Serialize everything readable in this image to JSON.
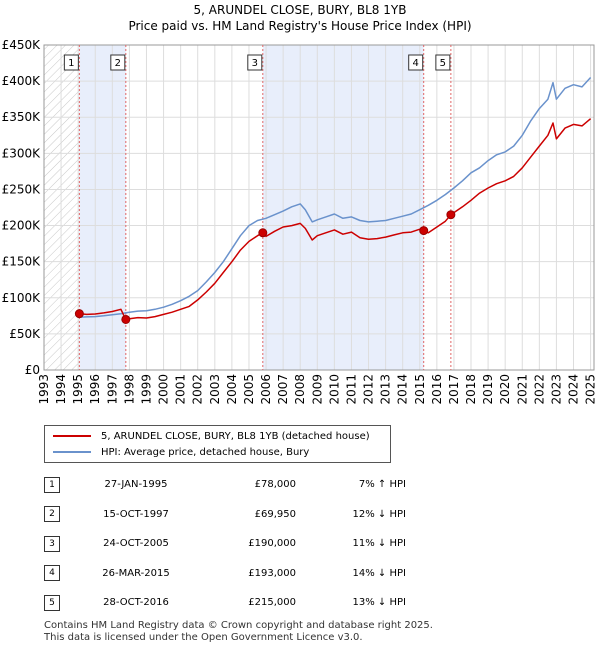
{
  "title_line1": "5, ARUNDEL CLOSE, BURY, BL8 1YB",
  "title_line2": "Price paid vs. HM Land Registry's House Price Index (HPI)",
  "chart_data": {
    "type": "line",
    "x_range": [
      1993,
      2025.2
    ],
    "ylim": [
      0,
      450000
    ],
    "y_ticks": [
      0,
      50000,
      100000,
      150000,
      200000,
      250000,
      300000,
      350000,
      400000,
      450000
    ],
    "y_tick_labels": [
      "£0",
      "£50K",
      "£100K",
      "£150K",
      "£200K",
      "£250K",
      "£300K",
      "£350K",
      "£400K",
      "£450K"
    ],
    "x_ticks": [
      1993,
      1994,
      1995,
      1996,
      1997,
      1998,
      1999,
      2000,
      2001,
      2002,
      2003,
      2004,
      2005,
      2006,
      2007,
      2008,
      2009,
      2010,
      2011,
      2012,
      2013,
      2014,
      2015,
      2016,
      2017,
      2018,
      2019,
      2020,
      2021,
      2022,
      2023,
      2024,
      2025
    ],
    "hatched_until": 1995.07,
    "series": [
      {
        "name": "5, ARUNDEL CLOSE, BURY, BL8 1YB (detached house)",
        "color": "#cc0000",
        "x": [
          1995.07,
          1995.5,
          1996.0,
          1996.5,
          1997.0,
          1997.5,
          1997.79,
          1998.0,
          1998.5,
          1999.0,
          1999.5,
          2000.0,
          2000.5,
          2001.0,
          2001.5,
          2002.0,
          2002.5,
          2003.0,
          2003.5,
          2004.0,
          2004.5,
          2005.0,
          2005.5,
          2005.81,
          2006.0,
          2006.5,
          2007.0,
          2007.5,
          2008.0,
          2008.3,
          2008.7,
          2009.0,
          2009.5,
          2010.0,
          2010.5,
          2011.0,
          2011.5,
          2012.0,
          2012.5,
          2013.0,
          2013.5,
          2014.0,
          2014.5,
          2015.0,
          2015.23,
          2015.5,
          2016.0,
          2016.5,
          2016.82,
          2017.0,
          2017.5,
          2018.0,
          2018.5,
          2019.0,
          2019.5,
          2020.0,
          2020.5,
          2021.0,
          2021.5,
          2022.0,
          2022.5,
          2022.8,
          2023.0,
          2023.5,
          2024.0,
          2024.5,
          2025.0
        ],
        "y": [
          78000,
          77000,
          77500,
          79000,
          81000,
          84000,
          69950,
          71000,
          72500,
          72000,
          74000,
          77000,
          80000,
          84000,
          88000,
          97000,
          108000,
          120000,
          135000,
          150000,
          166000,
          178000,
          186000,
          190000,
          185000,
          192000,
          198000,
          200000,
          203000,
          196000,
          180000,
          186000,
          190000,
          194000,
          188000,
          191000,
          183000,
          181000,
          182000,
          184000,
          187000,
          190000,
          191000,
          195000,
          193000,
          190000,
          198000,
          206000,
          215000,
          218000,
          226000,
          235000,
          245000,
          252000,
          258000,
          262000,
          268000,
          280000,
          295000,
          310000,
          325000,
          342000,
          320000,
          335000,
          340000,
          338000,
          348000
        ]
      },
      {
        "name": "HPI: Average price, detached house, Bury",
        "color": "#6a92cc",
        "x": [
          1995.0,
          1995.5,
          1996.0,
          1996.5,
          1997.0,
          1997.5,
          1998.0,
          1998.5,
          1999.0,
          1999.5,
          2000.0,
          2000.5,
          2001.0,
          2001.5,
          2002.0,
          2002.5,
          2003.0,
          2003.5,
          2004.0,
          2004.5,
          2005.0,
          2005.5,
          2006.0,
          2006.5,
          2007.0,
          2007.5,
          2008.0,
          2008.3,
          2008.7,
          2009.0,
          2009.5,
          2010.0,
          2010.5,
          2011.0,
          2011.5,
          2012.0,
          2012.5,
          2013.0,
          2013.5,
          2014.0,
          2014.5,
          2015.0,
          2015.5,
          2016.0,
          2016.5,
          2017.0,
          2017.5,
          2018.0,
          2018.5,
          2019.0,
          2019.5,
          2020.0,
          2020.5,
          2021.0,
          2021.5,
          2022.0,
          2022.5,
          2022.8,
          2023.0,
          2023.5,
          2024.0,
          2024.5,
          2025.0
        ],
        "y": [
          73000,
          73500,
          74000,
          75000,
          76500,
          78000,
          80000,
          81500,
          82000,
          84000,
          87000,
          91000,
          96000,
          102000,
          110000,
          122000,
          135000,
          150000,
          168000,
          186000,
          200000,
          207000,
          210000,
          215000,
          220000,
          226000,
          230000,
          222000,
          205000,
          208000,
          212000,
          216000,
          210000,
          212000,
          207000,
          205000,
          206000,
          207000,
          210000,
          213000,
          216000,
          222000,
          228000,
          235000,
          243000,
          252000,
          262000,
          273000,
          280000,
          290000,
          298000,
          302000,
          310000,
          325000,
          345000,
          362000,
          375000,
          398000,
          375000,
          390000,
          395000,
          392000,
          405000
        ]
      }
    ],
    "sales": [
      {
        "num": "1",
        "x": 1995.07,
        "price": 78000
      },
      {
        "num": "2",
        "x": 1997.79,
        "price": 69950
      },
      {
        "num": "3",
        "x": 2005.81,
        "price": 190000
      },
      {
        "num": "4",
        "x": 2015.23,
        "price": 193000
      },
      {
        "num": "5",
        "x": 2016.82,
        "price": 215000
      }
    ]
  },
  "legend": {
    "price_label": "5, ARUNDEL CLOSE, BURY, BL8 1YB (detached house)",
    "hpi_label": "HPI: Average price, detached house, Bury",
    "price_color": "#cc0000",
    "hpi_color": "#6a92cc"
  },
  "table": [
    {
      "num": "1",
      "date": "27-JAN-1995",
      "price": "£78,000",
      "hpi": "7% ↑ HPI"
    },
    {
      "num": "2",
      "date": "15-OCT-1997",
      "price": "£69,950",
      "hpi": "12% ↓ HPI"
    },
    {
      "num": "3",
      "date": "24-OCT-2005",
      "price": "£190,000",
      "hpi": "11% ↓ HPI"
    },
    {
      "num": "4",
      "date": "26-MAR-2015",
      "price": "£193,000",
      "hpi": "14% ↓ HPI"
    },
    {
      "num": "5",
      "date": "28-OCT-2016",
      "price": "£215,000",
      "hpi": "13% ↓ HPI"
    }
  ],
  "footer": {
    "line1": "Contains HM Land Registry data © Crown copyright and database right 2025.",
    "line2": "This data is licensed under the Open Government Licence v3.0."
  }
}
